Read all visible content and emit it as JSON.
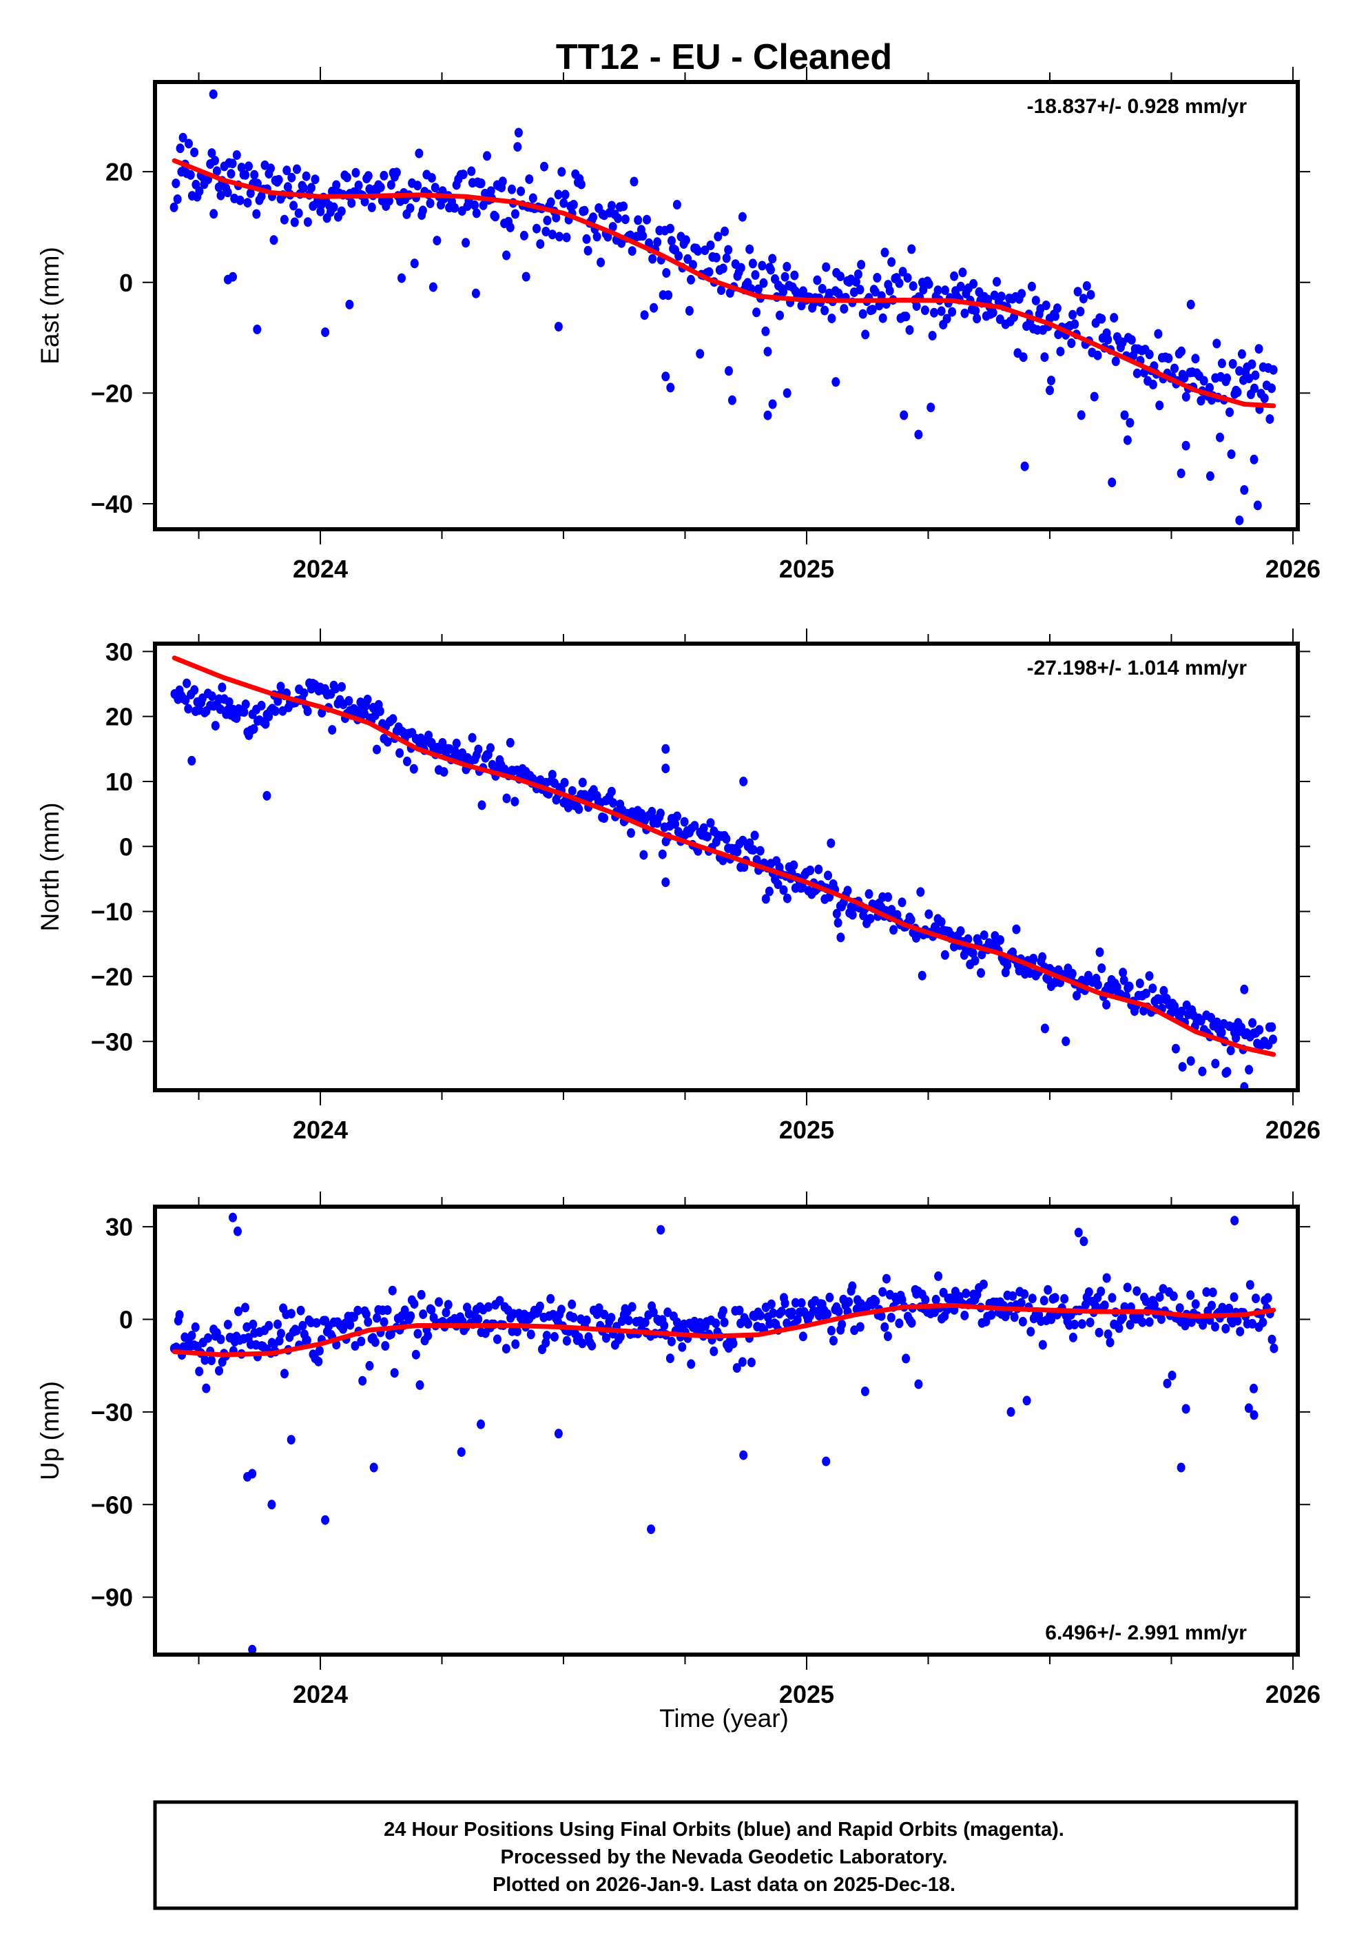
{
  "chart_data": {
    "type": "scatter",
    "title": "TT12  - EU - Cleaned",
    "xlabel": "Time (year)",
    "xlim": [
      2023.66,
      2026.01
    ],
    "x_ticks": [
      2024,
      2025,
      2026
    ],
    "x_tick_labels": [
      "2024",
      "2025",
      "2026"
    ],
    "colors": {
      "points": "#0000ff",
      "fit": "#ff0000",
      "frame": "#000000"
    },
    "panels": [
      {
        "id": "east",
        "ylabel": "East (mm)",
        "ylim": [
          -44.6,
          36.2
        ],
        "y_ticks": [
          20,
          0,
          -20,
          -40
        ],
        "y_tick_labels": [
          "20",
          "0",
          "−20",
          "−40"
        ],
        "rate_text": "-18.837+/- 0.928 mm/yr",
        "rate_position": "top-right",
        "fit": {
          "x": [
            2023.7,
            2023.8,
            2023.9,
            2024.0,
            2024.1,
            2024.2,
            2024.3,
            2024.4,
            2024.5,
            2024.6,
            2024.7,
            2024.8,
            2024.9,
            2025.0,
            2025.1,
            2025.2,
            2025.3,
            2025.4,
            2025.5,
            2025.6,
            2025.7,
            2025.8,
            2025.9,
            2025.96
          ],
          "y": [
            22,
            18.5,
            16.2,
            15.5,
            15.6,
            15.8,
            15.5,
            14.5,
            12.5,
            9,
            5,
            0.5,
            -2.5,
            -3.2,
            -3.3,
            -3.2,
            -3.3,
            -4.5,
            -7.5,
            -11.5,
            -15.5,
            -19.5,
            -22,
            -22.3
          ]
        },
        "trend": {
          "amp": 6,
          "points": [
            [
              2023.7,
              21
            ],
            [
              2023.85,
              18
            ],
            [
              2024.0,
              16
            ],
            [
              2024.2,
              16
            ],
            [
              2024.4,
              15
            ],
            [
              2024.55,
              12
            ],
            [
              2024.7,
              7
            ],
            [
              2024.85,
              1
            ],
            [
              2025.0,
              -2
            ],
            [
              2025.2,
              -2
            ],
            [
              2025.35,
              -3
            ],
            [
              2025.5,
              -6
            ],
            [
              2025.65,
              -12
            ],
            [
              2025.8,
              -17
            ],
            [
              2025.96,
              -19
            ]
          ]
        },
        "outliers": [
          [
            2023.78,
            34
          ],
          [
            2023.81,
            0.5
          ],
          [
            2023.82,
            1
          ],
          [
            2023.87,
            -8.5
          ],
          [
            2024.01,
            -9
          ],
          [
            2024.06,
            -4
          ],
          [
            2024.32,
            -2
          ],
          [
            2024.49,
            -8
          ],
          [
            2024.71,
            -17
          ],
          [
            2024.72,
            -19
          ],
          [
            2024.84,
            -16
          ],
          [
            2024.92,
            -12.5
          ],
          [
            2024.93,
            -22
          ],
          [
            2024.96,
            -20
          ],
          [
            2025.06,
            -18
          ],
          [
            2025.2,
            -24
          ],
          [
            2025.23,
            -27.5
          ],
          [
            2025.5,
            -19.5
          ],
          [
            2025.66,
            -28.5
          ],
          [
            2025.77,
            -34.5
          ],
          [
            2025.78,
            -29.5
          ],
          [
            2025.83,
            -35
          ],
          [
            2025.85,
            -28
          ],
          [
            2025.89,
            -43
          ],
          [
            2025.9,
            -37.5
          ],
          [
            2025.92,
            -32
          ],
          [
            2025.93,
            -12
          ],
          [
            2025.79,
            -4
          ]
        ]
      },
      {
        "id": "north",
        "ylabel": "North (mm)",
        "ylim": [
          -37.5,
          31.2
        ],
        "y_ticks": [
          30,
          20,
          10,
          0,
          -10,
          -20,
          -30
        ],
        "y_tick_labels": [
          "30",
          "20",
          "10",
          "0",
          "−10",
          "−20",
          "−30"
        ],
        "rate_text": "-27.198+/- 1.014 mm/yr",
        "rate_position": "top-right",
        "fit": {
          "x": [
            2023.7,
            2023.8,
            2023.9,
            2024.0,
            2024.1,
            2024.2,
            2024.3,
            2024.4,
            2024.5,
            2024.6,
            2024.7,
            2024.8,
            2024.9,
            2025.0,
            2025.1,
            2025.2,
            2025.3,
            2025.4,
            2025.5,
            2025.6,
            2025.7,
            2025.8,
            2025.9,
            2025.96
          ],
          "y": [
            29,
            26,
            23.5,
            21.5,
            19,
            15,
            12.5,
            10.5,
            8,
            5.2,
            2,
            -0.5,
            -3,
            -5.5,
            -8.5,
            -12,
            -14.5,
            -16.5,
            -19.5,
            -22.5,
            -24.5,
            -28.5,
            -31,
            -32
          ]
        },
        "trend": {
          "amp": 2.5,
          "points": [
            [
              2023.7,
              24
            ],
            [
              2023.85,
              20
            ],
            [
              2024.0,
              24
            ],
            [
              2024.1,
              20
            ],
            [
              2024.2,
              16
            ],
            [
              2024.35,
              13
            ],
            [
              2024.5,
              8.5
            ],
            [
              2024.65,
              5
            ],
            [
              2024.8,
              1.5
            ],
            [
              2024.95,
              -4
            ],
            [
              2025.1,
              -9
            ],
            [
              2025.25,
              -13
            ],
            [
              2025.4,
              -16
            ],
            [
              2025.55,
              -21
            ],
            [
              2025.7,
              -23
            ],
            [
              2025.85,
              -28
            ],
            [
              2025.96,
              -30
            ]
          ]
        },
        "outliers": [
          [
            2023.89,
            7.8
          ],
          [
            2024.71,
            15
          ],
          [
            2024.71,
            12
          ],
          [
            2024.87,
            10
          ],
          [
            2024.71,
            -5.5
          ],
          [
            2025.05,
            0.5
          ],
          [
            2025.07,
            -14
          ],
          [
            2025.49,
            -28
          ],
          [
            2025.79,
            -33
          ],
          [
            2025.9,
            -37
          ],
          [
            2025.9,
            -22
          ],
          [
            2025.86,
            -30
          ]
        ]
      },
      {
        "id": "up",
        "ylabel": "Up (mm)",
        "ylim": [
          -108.6,
          36.5
        ],
        "y_ticks": [
          30,
          0,
          -30,
          -60,
          -90
        ],
        "y_tick_labels": [
          "30",
          "0",
          "−30",
          "−60",
          "−90"
        ],
        "rate_text": "6.496+/- 2.991 mm/yr",
        "rate_position": "bottom-right",
        "fit": {
          "x": [
            2023.7,
            2023.8,
            2023.9,
            2024.0,
            2024.1,
            2024.2,
            2024.3,
            2024.4,
            2024.5,
            2024.6,
            2024.7,
            2024.8,
            2024.9,
            2025.0,
            2025.1,
            2025.2,
            2025.3,
            2025.4,
            2025.5,
            2025.6,
            2025.7,
            2025.8,
            2025.9,
            2025.96
          ],
          "y": [
            -10.5,
            -11.5,
            -11,
            -8,
            -3.5,
            -2,
            -2,
            -2,
            -2.5,
            -3.5,
            -4.5,
            -5.5,
            -5,
            -2,
            1.5,
            4,
            4.5,
            3.5,
            3,
            2.5,
            2.5,
            1,
            1.5,
            3
          ]
        },
        "trend": {
          "amp": 8,
          "points": [
            [
              2023.7,
              -8
            ],
            [
              2023.85,
              -6
            ],
            [
              2024.0,
              -4
            ],
            [
              2024.2,
              0
            ],
            [
              2024.4,
              0
            ],
            [
              2024.6,
              -1
            ],
            [
              2024.8,
              -3
            ],
            [
              2025.0,
              2
            ],
            [
              2025.2,
              6
            ],
            [
              2025.4,
              4
            ],
            [
              2025.6,
              3
            ],
            [
              2025.8,
              1
            ],
            [
              2025.96,
              3
            ]
          ]
        },
        "outliers": [
          [
            2023.82,
            33
          ],
          [
            2023.83,
            28.5
          ],
          [
            2023.85,
            -51
          ],
          [
            2023.86,
            -50
          ],
          [
            2023.86,
            -107
          ],
          [
            2023.9,
            -60
          ],
          [
            2023.94,
            -39
          ],
          [
            2024.01,
            -65
          ],
          [
            2024.11,
            -48
          ],
          [
            2024.29,
            -43
          ],
          [
            2024.33,
            -34
          ],
          [
            2024.49,
            -37
          ],
          [
            2024.68,
            -68
          ],
          [
            2024.7,
            29
          ],
          [
            2024.87,
            -44
          ],
          [
            2025.04,
            -46
          ],
          [
            2025.23,
            -21
          ],
          [
            2025.42,
            -30
          ],
          [
            2025.77,
            -48
          ],
          [
            2025.78,
            -29
          ],
          [
            2025.88,
            32
          ],
          [
            2025.92,
            -31
          ]
        ]
      }
    ]
  },
  "footer": {
    "lines": [
      "24 Hour Positions Using Final Orbits (blue) and Rapid Orbits (magenta).",
      "Processed by the Nevada Geodetic Laboratory.",
      "Plotted on 2026-Jan-9. Last data on 2025-Dec-18."
    ]
  }
}
